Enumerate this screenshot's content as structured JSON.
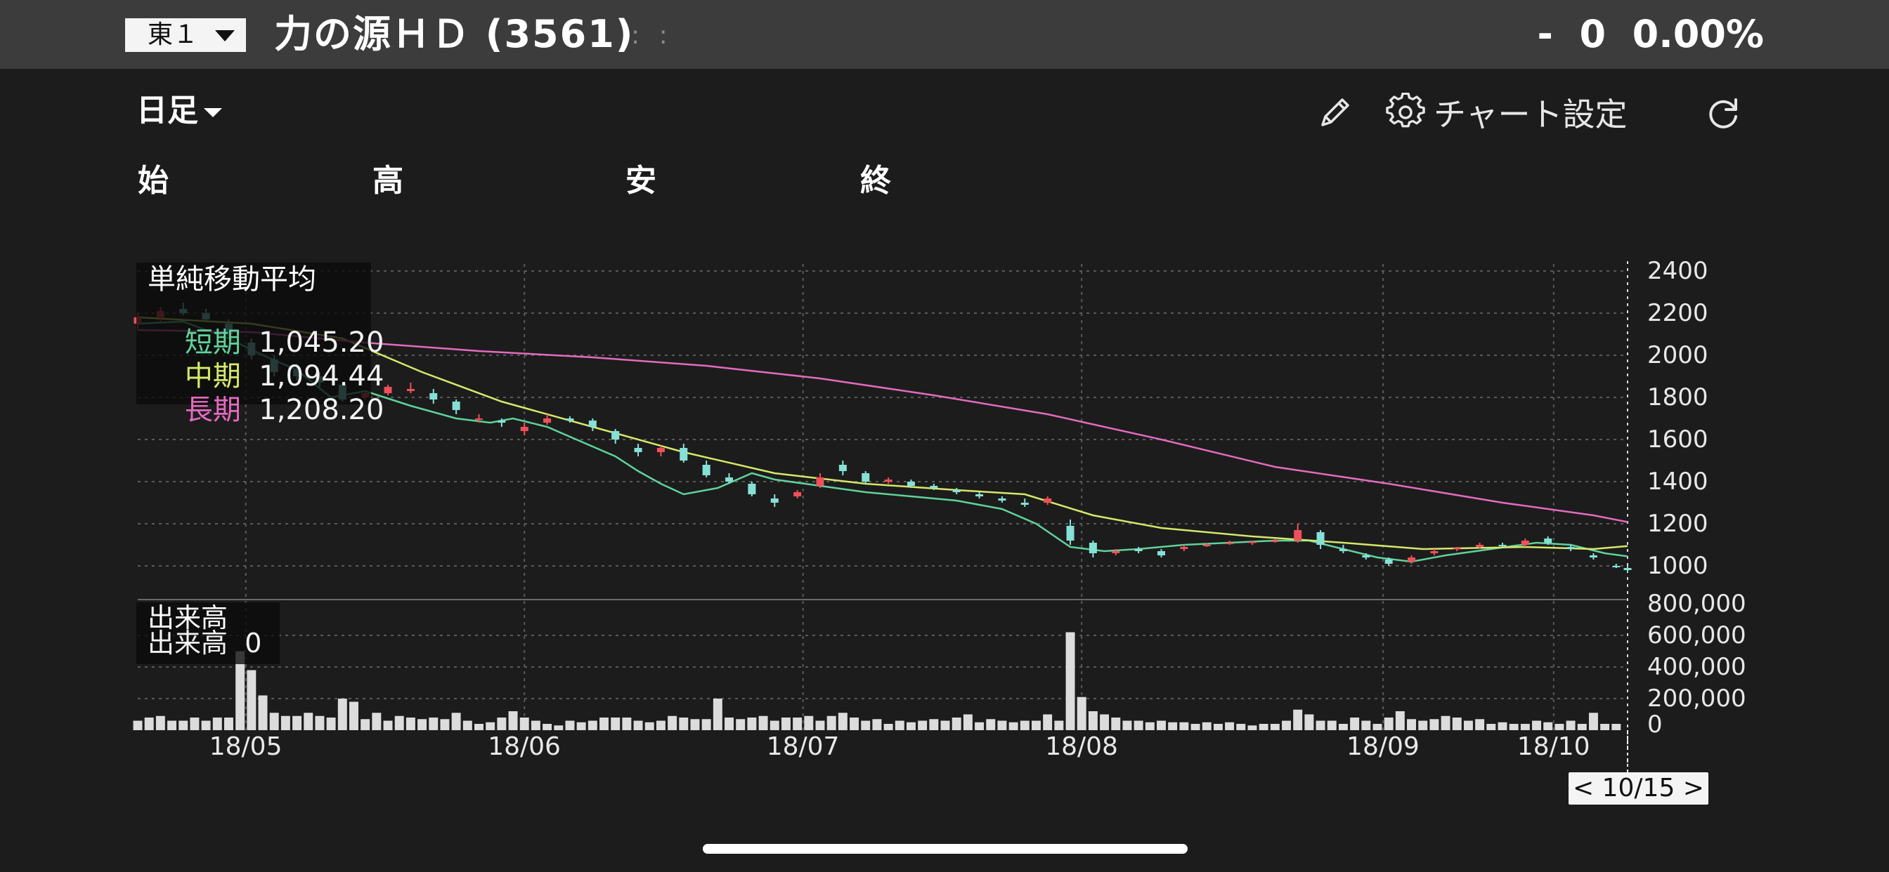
{
  "header": {
    "market": "東１",
    "stock_name": "力の源ＨＤ (3561)",
    "drag_handle": ": :",
    "price_change": "-  0  0.00%"
  },
  "toolbar": {
    "period": "日足",
    "settings_label": "チャート設定",
    "icons": [
      "pencil-icon",
      "gear-icon",
      "refresh-icon"
    ]
  },
  "ohlc": {
    "open": "始",
    "high": "高",
    "low": "安",
    "close": "終"
  },
  "price_legend": {
    "title": "単純移動平均",
    "rows": [
      {
        "name": "短期",
        "value": "1,045.20",
        "color": "#5fd39a"
      },
      {
        "name": "中期",
        "value": "1,094.44",
        "color": "#d6e86a"
      },
      {
        "name": "長期",
        "value": "1,208.20",
        "color": "#e46ac0"
      }
    ]
  },
  "volume_legend": {
    "title": "出来高",
    "label": "出来高",
    "value": "0"
  },
  "date_badge": "< 10/15 >",
  "colors": {
    "up": "#f0505a",
    "down": "#86e0d6",
    "volume": "#dcdcdc",
    "grid": "#5a5a5a",
    "background": "#1c1c1c"
  },
  "chart_data": {
    "type": "candlestick",
    "price_axis": {
      "ticks": [
        "2400",
        "2200",
        "2000",
        "1800",
        "1600",
        "1400",
        "1200",
        "1000"
      ],
      "ylim": [
        920,
        2400
      ]
    },
    "volume_axis": {
      "ticks": [
        "800,000",
        "600,000",
        "400,000",
        "200,000",
        "0"
      ],
      "ylim": [
        0,
        800000
      ]
    },
    "x_ticks": [
      "18/05",
      "18/06",
      "18/07",
      "18/08",
      "18/09",
      "18/10"
    ],
    "last_date": "10/15",
    "series": [
      {
        "name": "短期",
        "color": "#5fd39a",
        "points": [
          [
            0,
            2150
          ],
          [
            8,
            2160
          ],
          [
            16,
            2080
          ],
          [
            22,
            2000
          ],
          [
            28,
            1930
          ],
          [
            34,
            1800
          ],
          [
            40,
            1830
          ],
          [
            48,
            1760
          ],
          [
            56,
            1700
          ],
          [
            62,
            1680
          ],
          [
            66,
            1700
          ],
          [
            72,
            1660
          ],
          [
            78,
            1590
          ],
          [
            84,
            1520
          ],
          [
            88,
            1450
          ],
          [
            92,
            1390
          ],
          [
            96,
            1340
          ],
          [
            102,
            1370
          ],
          [
            108,
            1440
          ],
          [
            112,
            1410
          ],
          [
            120,
            1380
          ],
          [
            128,
            1350
          ],
          [
            136,
            1330
          ],
          [
            144,
            1310
          ],
          [
            152,
            1270
          ],
          [
            158,
            1200
          ],
          [
            164,
            1090
          ],
          [
            170,
            1070
          ],
          [
            176,
            1080
          ],
          [
            184,
            1100
          ],
          [
            192,
            1110
          ],
          [
            200,
            1120
          ],
          [
            206,
            1120
          ],
          [
            212,
            1080
          ],
          [
            218,
            1040
          ],
          [
            224,
            1020
          ],
          [
            230,
            1050
          ],
          [
            238,
            1080
          ],
          [
            246,
            1110
          ],
          [
            252,
            1100
          ],
          [
            258,
            1060
          ],
          [
            262,
            1045.2
          ]
        ]
      },
      {
        "name": "中期",
        "color": "#d6e86a",
        "points": [
          [
            0,
            2180
          ],
          [
            20,
            2150
          ],
          [
            36,
            2080
          ],
          [
            50,
            1920
          ],
          [
            64,
            1780
          ],
          [
            80,
            1660
          ],
          [
            96,
            1540
          ],
          [
            112,
            1440
          ],
          [
            128,
            1390
          ],
          [
            144,
            1360
          ],
          [
            156,
            1340
          ],
          [
            168,
            1240
          ],
          [
            180,
            1180
          ],
          [
            196,
            1140
          ],
          [
            212,
            1110
          ],
          [
            226,
            1080
          ],
          [
            244,
            1090
          ],
          [
            256,
            1080
          ],
          [
            262,
            1094.44
          ]
        ]
      },
      {
        "name": "長期",
        "color": "#e46ac0",
        "points": [
          [
            0,
            2120
          ],
          [
            20,
            2110
          ],
          [
            40,
            2060
          ],
          [
            60,
            2020
          ],
          [
            80,
            1990
          ],
          [
            100,
            1950
          ],
          [
            120,
            1890
          ],
          [
            140,
            1810
          ],
          [
            160,
            1720
          ],
          [
            180,
            1600
          ],
          [
            200,
            1470
          ],
          [
            220,
            1390
          ],
          [
            240,
            1300
          ],
          [
            256,
            1240
          ],
          [
            262,
            1208.2
          ]
        ]
      }
    ],
    "candles": [
      [
        0,
        2150,
        2200,
        2120,
        2180
      ],
      [
        4,
        2180,
        2230,
        2160,
        2210
      ],
      [
        8,
        2220,
        2250,
        2190,
        2200
      ],
      [
        12,
        2200,
        2220,
        2160,
        2170
      ],
      [
        16,
        2150,
        2170,
        2080,
        2100
      ],
      [
        20,
        2060,
        2080,
        1980,
        2000
      ],
      [
        24,
        1980,
        2000,
        1900,
        1920
      ],
      [
        28,
        1930,
        1960,
        1880,
        1900
      ],
      [
        32,
        1900,
        1920,
        1850,
        1870
      ],
      [
        36,
        1860,
        1870,
        1780,
        1790
      ],
      [
        40,
        1800,
        1830,
        1790,
        1820
      ],
      [
        44,
        1820,
        1860,
        1810,
        1850
      ],
      [
        48,
        1830,
        1870,
        1820,
        1840
      ],
      [
        52,
        1820,
        1840,
        1770,
        1790
      ],
      [
        56,
        1780,
        1790,
        1720,
        1740
      ],
      [
        60,
        1700,
        1720,
        1680,
        1700
      ],
      [
        64,
        1690,
        1700,
        1660,
        1680
      ],
      [
        68,
        1640,
        1680,
        1620,
        1660
      ],
      [
        72,
        1680,
        1720,
        1670,
        1700
      ],
      [
        76,
        1700,
        1710,
        1680,
        1690
      ],
      [
        80,
        1690,
        1700,
        1640,
        1660
      ],
      [
        84,
        1640,
        1650,
        1580,
        1600
      ],
      [
        88,
        1560,
        1580,
        1520,
        1540
      ],
      [
        92,
        1540,
        1570,
        1520,
        1560
      ],
      [
        96,
        1560,
        1580,
        1490,
        1500
      ],
      [
        100,
        1480,
        1500,
        1420,
        1430
      ],
      [
        104,
        1420,
        1440,
        1390,
        1400
      ],
      [
        108,
        1390,
        1400,
        1330,
        1340
      ],
      [
        112,
        1320,
        1340,
        1280,
        1300
      ],
      [
        116,
        1330,
        1360,
        1320,
        1350
      ],
      [
        120,
        1380,
        1440,
        1370,
        1420
      ],
      [
        124,
        1480,
        1500,
        1430,
        1450
      ],
      [
        128,
        1440,
        1450,
        1390,
        1400
      ],
      [
        132,
        1400,
        1420,
        1390,
        1410
      ],
      [
        136,
        1400,
        1410,
        1370,
        1380
      ],
      [
        140,
        1380,
        1390,
        1360,
        1370
      ],
      [
        144,
        1360,
        1370,
        1340,
        1350
      ],
      [
        148,
        1340,
        1350,
        1320,
        1330
      ],
      [
        152,
        1320,
        1330,
        1300,
        1310
      ],
      [
        156,
        1300,
        1320,
        1280,
        1290
      ],
      [
        160,
        1300,
        1330,
        1290,
        1320
      ],
      [
        164,
        1190,
        1220,
        1100,
        1120
      ],
      [
        168,
        1110,
        1120,
        1040,
        1060
      ],
      [
        172,
        1060,
        1080,
        1050,
        1070
      ],
      [
        176,
        1080,
        1090,
        1060,
        1070
      ],
      [
        180,
        1070,
        1080,
        1040,
        1050
      ],
      [
        184,
        1080,
        1100,
        1070,
        1090
      ],
      [
        188,
        1100,
        1110,
        1090,
        1100
      ],
      [
        192,
        1110,
        1120,
        1100,
        1110
      ],
      [
        196,
        1110,
        1120,
        1100,
        1115
      ],
      [
        200,
        1120,
        1130,
        1110,
        1120
      ],
      [
        204,
        1120,
        1200,
        1110,
        1170
      ],
      [
        208,
        1160,
        1170,
        1080,
        1100
      ],
      [
        212,
        1080,
        1100,
        1060,
        1070
      ],
      [
        216,
        1050,
        1060,
        1030,
        1040
      ],
      [
        220,
        1030,
        1040,
        1000,
        1010
      ],
      [
        224,
        1020,
        1050,
        1010,
        1040
      ],
      [
        228,
        1060,
        1080,
        1050,
        1070
      ],
      [
        232,
        1080,
        1090,
        1070,
        1085
      ],
      [
        236,
        1090,
        1110,
        1080,
        1100
      ],
      [
        240,
        1100,
        1110,
        1090,
        1095
      ],
      [
        244,
        1100,
        1130,
        1090,
        1120
      ],
      [
        248,
        1130,
        1140,
        1100,
        1110
      ],
      [
        252,
        1090,
        1100,
        1070,
        1080
      ],
      [
        256,
        1050,
        1060,
        1030,
        1040
      ],
      [
        260,
        1000,
        1010,
        990,
        995
      ],
      [
        262,
        990,
        1000,
        970,
        980
      ]
    ],
    "volumes": [
      [
        0,
        60000
      ],
      [
        2,
        80000
      ],
      [
        4,
        90000
      ],
      [
        6,
        60000
      ],
      [
        8,
        60000
      ],
      [
        10,
        80000
      ],
      [
        12,
        60000
      ],
      [
        14,
        80000
      ],
      [
        16,
        80000
      ],
      [
        18,
        500000
      ],
      [
        20,
        380000
      ],
      [
        22,
        220000
      ],
      [
        24,
        110000
      ],
      [
        26,
        90000
      ],
      [
        28,
        90000
      ],
      [
        30,
        110000
      ],
      [
        32,
        90000
      ],
      [
        34,
        80000
      ],
      [
        36,
        200000
      ],
      [
        38,
        180000
      ],
      [
        40,
        70000
      ],
      [
        42,
        110000
      ],
      [
        44,
        60000
      ],
      [
        46,
        90000
      ],
      [
        48,
        80000
      ],
      [
        50,
        70000
      ],
      [
        52,
        80000
      ],
      [
        54,
        70000
      ],
      [
        56,
        110000
      ],
      [
        58,
        60000
      ],
      [
        60,
        40000
      ],
      [
        62,
        50000
      ],
      [
        64,
        80000
      ],
      [
        66,
        120000
      ],
      [
        68,
        80000
      ],
      [
        70,
        60000
      ],
      [
        72,
        40000
      ],
      [
        74,
        30000
      ],
      [
        76,
        60000
      ],
      [
        78,
        50000
      ],
      [
        80,
        60000
      ],
      [
        82,
        80000
      ],
      [
        84,
        80000
      ],
      [
        86,
        80000
      ],
      [
        88,
        60000
      ],
      [
        90,
        50000
      ],
      [
        92,
        60000
      ],
      [
        94,
        90000
      ],
      [
        96,
        80000
      ],
      [
        98,
        70000
      ],
      [
        100,
        70000
      ],
      [
        102,
        200000
      ],
      [
        104,
        80000
      ],
      [
        106,
        70000
      ],
      [
        108,
        80000
      ],
      [
        110,
        90000
      ],
      [
        112,
        60000
      ],
      [
        114,
        80000
      ],
      [
        116,
        80000
      ],
      [
        118,
        90000
      ],
      [
        120,
        60000
      ],
      [
        122,
        90000
      ],
      [
        124,
        110000
      ],
      [
        126,
        80000
      ],
      [
        128,
        60000
      ],
      [
        130,
        70000
      ],
      [
        132,
        40000
      ],
      [
        134,
        60000
      ],
      [
        136,
        50000
      ],
      [
        138,
        60000
      ],
      [
        140,
        70000
      ],
      [
        142,
        60000
      ],
      [
        144,
        80000
      ],
      [
        146,
        100000
      ],
      [
        148,
        50000
      ],
      [
        150,
        70000
      ],
      [
        152,
        60000
      ],
      [
        154,
        50000
      ],
      [
        156,
        60000
      ],
      [
        158,
        60000
      ],
      [
        160,
        100000
      ],
      [
        162,
        60000
      ],
      [
        164,
        620000
      ],
      [
        166,
        210000
      ],
      [
        168,
        120000
      ],
      [
        170,
        100000
      ],
      [
        172,
        80000
      ],
      [
        174,
        60000
      ],
      [
        176,
        60000
      ],
      [
        178,
        50000
      ],
      [
        180,
        60000
      ],
      [
        182,
        50000
      ],
      [
        184,
        50000
      ],
      [
        186,
        40000
      ],
      [
        188,
        50000
      ],
      [
        190,
        40000
      ],
      [
        192,
        50000
      ],
      [
        194,
        40000
      ],
      [
        196,
        30000
      ],
      [
        198,
        40000
      ],
      [
        200,
        40000
      ],
      [
        202,
        60000
      ],
      [
        204,
        130000
      ],
      [
        206,
        100000
      ],
      [
        208,
        60000
      ],
      [
        210,
        60000
      ],
      [
        212,
        40000
      ],
      [
        214,
        80000
      ],
      [
        216,
        60000
      ],
      [
        218,
        40000
      ],
      [
        220,
        80000
      ],
      [
        222,
        120000
      ],
      [
        224,
        70000
      ],
      [
        226,
        60000
      ],
      [
        228,
        70000
      ],
      [
        230,
        90000
      ],
      [
        232,
        80000
      ],
      [
        234,
        60000
      ],
      [
        236,
        70000
      ],
      [
        238,
        40000
      ],
      [
        240,
        50000
      ],
      [
        242,
        40000
      ],
      [
        244,
        40000
      ],
      [
        246,
        60000
      ],
      [
        248,
        50000
      ],
      [
        250,
        40000
      ],
      [
        252,
        60000
      ],
      [
        254,
        40000
      ],
      [
        256,
        110000
      ],
      [
        258,
        40000
      ],
      [
        260,
        40000
      ]
    ]
  }
}
